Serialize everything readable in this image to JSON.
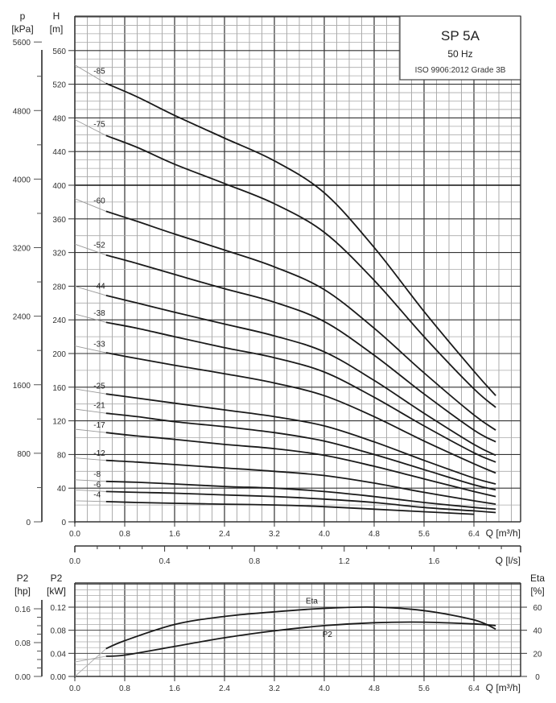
{
  "chart_data": [
    {
      "type": "line",
      "title": "SP 5A",
      "subtitle": "50 Hz",
      "standard": "ISO 9906:2012 Grade 3B",
      "xlabel": "Q [m³/h]",
      "x_ticks": [
        "0.0",
        "0.8",
        "1.6",
        "2.4",
        "3.2",
        "4.0",
        "4.8",
        "5.6",
        "6.4"
      ],
      "xlim": [
        0,
        7.15
      ],
      "p_axis": {
        "label": [
          "p",
          "[kPa]"
        ],
        "ticks": [
          "0",
          "800",
          "1600",
          "2400",
          "3200",
          "4000",
          "4800",
          "5600"
        ]
      },
      "h_axis": {
        "label": [
          "H",
          "[m]"
        ],
        "ticks": [
          "0",
          "40",
          "80",
          "120",
          "160",
          "200",
          "240",
          "280",
          "320",
          "360",
          "400",
          "440",
          "480",
          "520",
          "560"
        ]
      },
      "ylim": [
        0,
        600
      ],
      "secondary_x": {
        "label": "Q [l/s]",
        "ticks": [
          "0.0",
          "0.4",
          "0.8",
          "1.2",
          "1.6"
        ]
      },
      "grid": true,
      "x": [
        0,
        0.5,
        1.0,
        1.6,
        2.4,
        3.2,
        4.0,
        4.8,
        5.6,
        6.4,
        6.75
      ],
      "series": [
        {
          "name": "-85",
          "values": [
            543,
            521,
            505,
            483,
            456,
            429,
            391,
            326,
            250,
            179,
            150
          ]
        },
        {
          "name": "-75",
          "values": [
            478,
            459,
            445,
            425,
            402,
            378,
            344,
            287,
            220,
            158,
            136
          ]
        },
        {
          "name": "-60",
          "values": [
            384,
            369,
            357,
            342,
            323,
            303,
            276,
            230,
            177,
            127,
            109
          ]
        },
        {
          "name": "-52",
          "values": [
            330,
            317,
            307,
            294,
            277,
            261,
            238,
            198,
            152,
            109,
            95
          ]
        },
        {
          "name": "-44",
          "values": [
            280,
            269,
            260,
            249,
            235,
            221,
            202,
            168,
            129,
            92,
            79
          ]
        },
        {
          "name": "-38",
          "values": [
            247,
            237,
            230,
            220,
            207,
            195,
            178,
            148,
            114,
            82,
            71
          ]
        },
        {
          "name": "-33",
          "values": [
            209,
            201,
            194,
            186,
            176,
            165,
            150,
            125,
            96,
            69,
            58
          ]
        },
        {
          "name": "-25",
          "values": [
            158,
            152,
            147,
            141,
            133,
            125,
            114,
            95,
            73,
            52,
            45
          ]
        },
        {
          "name": "-21",
          "values": [
            134,
            129,
            125,
            119,
            113,
            106,
            96,
            80,
            62,
            44,
            38
          ]
        },
        {
          "name": "-17",
          "values": [
            110,
            106,
            102,
            98,
            92,
            87,
            79,
            66,
            51,
            36,
            30
          ]
        },
        {
          "name": "-12",
          "values": [
            76,
            73,
            71,
            68,
            64,
            60,
            55,
            46,
            35,
            25,
            21
          ]
        },
        {
          "name": "-8",
          "values": [
            50,
            48,
            47,
            45,
            42,
            40,
            36,
            30,
            23,
            17,
            15
          ]
        },
        {
          "name": "-6",
          "values": [
            38,
            36,
            35,
            34,
            32,
            30,
            27,
            23,
            17,
            13,
            11
          ]
        },
        {
          "name": "-4",
          "values": [
            25,
            24,
            23,
            22,
            21,
            20,
            18,
            15,
            12,
            9,
            null
          ]
        }
      ]
    },
    {
      "type": "line",
      "xlabel": "Q [m³/h]",
      "x_ticks": [
        "0.0",
        "0.8",
        "1.6",
        "2.4",
        "3.2",
        "4.0",
        "4.8",
        "5.6",
        "6.4"
      ],
      "xlim": [
        0,
        7.15
      ],
      "hp_axis": {
        "label": [
          "P2",
          "[hp]"
        ],
        "ticks": [
          "0.00",
          "0.08",
          "0.16"
        ]
      },
      "kw_axis": {
        "label": [
          "P2",
          "[kW]"
        ],
        "ticks": [
          "0.00",
          "0.04",
          "0.08",
          "0.12"
        ]
      },
      "eta_axis": {
        "label": [
          "Eta",
          "[%]"
        ],
        "ticks": [
          "0",
          "20",
          "40",
          "60"
        ]
      },
      "grid": true,
      "x": [
        0,
        0.5,
        0.8,
        1.6,
        2.4,
        3.2,
        4.0,
        4.8,
        5.6,
        6.4,
        6.75
      ],
      "series": [
        {
          "name": "Eta",
          "unit": "%",
          "values": [
            0,
            24,
            31,
            45,
            52,
            56,
            59,
            60,
            57,
            49,
            41
          ]
        },
        {
          "name": "P2",
          "unit": "kW",
          "values": [
            0.025,
            0.035,
            0.037,
            0.052,
            0.067,
            0.079,
            0.088,
            0.093,
            0.094,
            0.091,
            0.088
          ]
        }
      ]
    }
  ]
}
